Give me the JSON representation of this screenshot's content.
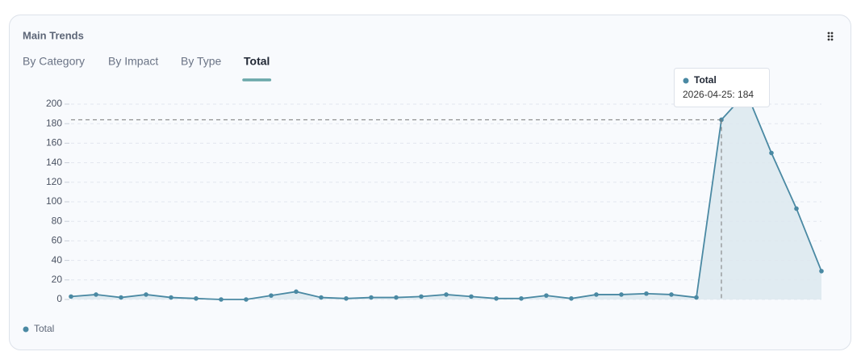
{
  "header": {
    "title": "Main Trends"
  },
  "tabs": [
    "By Category",
    "By Impact",
    "By Type",
    "Total"
  ],
  "active_tab": 3,
  "chart_data": {
    "type": "area",
    "categories": [
      null,
      null,
      null,
      null,
      null,
      null,
      null,
      null,
      null,
      null,
      null,
      null,
      null,
      null,
      null,
      null,
      null,
      null,
      null,
      null,
      null,
      null,
      null,
      null,
      null,
      null,
      "2026-04-25",
      null,
      null,
      null,
      null
    ],
    "series": [
      {
        "name": "Total",
        "color": "#4a89a3",
        "values": [
          3,
          5,
          2,
          5,
          2,
          1,
          0,
          0,
          4,
          8,
          2,
          1,
          2,
          2,
          3,
          5,
          3,
          1,
          1,
          4,
          1,
          5,
          5,
          6,
          5,
          2,
          184,
          212,
          150,
          93,
          29
        ]
      }
    ],
    "ylim": [
      0,
      200
    ],
    "yticks": [
      0,
      20,
      40,
      60,
      80,
      100,
      120,
      140,
      160,
      180,
      200
    ],
    "grid": true,
    "legend": "bottom-left",
    "hover_index": 26,
    "tooltip": {
      "series": "Total",
      "text": "2026-04-25: 184"
    }
  }
}
